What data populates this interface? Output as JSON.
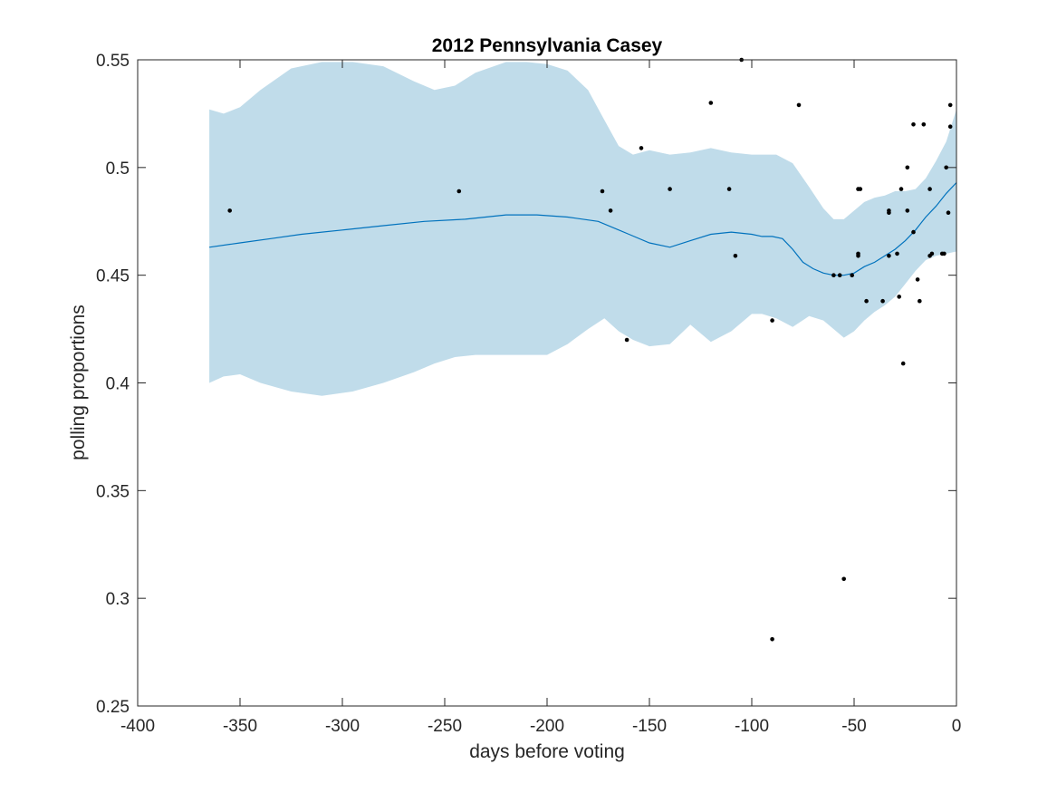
{
  "chart_data": {
    "type": "scatter",
    "title": "2012 Pennsylvania Casey",
    "xlabel": "days before voting",
    "ylabel": "polling proportions",
    "xlim": [
      -400,
      0
    ],
    "ylim": [
      0.25,
      0.55
    ],
    "xticks": [
      -400,
      -350,
      -300,
      -250,
      -200,
      -150,
      -100,
      -50,
      0
    ],
    "yticks": [
      0.25,
      0.3,
      0.35,
      0.4,
      0.45,
      0.5,
      0.55
    ],
    "xtick_labels": [
      "-400",
      "-350",
      "-300",
      "-250",
      "-200",
      "-150",
      "-100",
      "-50",
      "0"
    ],
    "ytick_labels": [
      "0.25",
      "0.3",
      "0.35",
      "0.4",
      "0.45",
      "0.5",
      "0.55"
    ],
    "grid": false,
    "colors": {
      "band": "#c0dcea",
      "trend": "#0072bd",
      "points": "#000000",
      "axes": "#262626"
    },
    "series": [
      {
        "kind": "band",
        "x": [
          -365,
          -358,
          -350,
          -340,
          -325,
          -310,
          -295,
          -280,
          -265,
          -255,
          -245,
          -235,
          -220,
          -210,
          -200,
          -190,
          -180,
          -172,
          -165,
          -158,
          -150,
          -140,
          -130,
          -120,
          -110,
          -100,
          -95,
          -88,
          -80,
          -72,
          -65,
          -60,
          -55,
          -50,
          -45,
          -40,
          -35,
          -30,
          -25,
          -20,
          -15,
          -10,
          -5,
          0
        ],
        "upper": [
          0.527,
          0.525,
          0.528,
          0.536,
          0.546,
          0.549,
          0.549,
          0.547,
          0.54,
          0.536,
          0.538,
          0.544,
          0.549,
          0.549,
          0.548,
          0.545,
          0.536,
          0.522,
          0.51,
          0.506,
          0.508,
          0.506,
          0.507,
          0.509,
          0.507,
          0.506,
          0.506,
          0.506,
          0.502,
          0.491,
          0.481,
          0.476,
          0.476,
          0.48,
          0.484,
          0.486,
          0.487,
          0.489,
          0.489,
          0.49,
          0.495,
          0.503,
          0.512,
          0.527
        ],
        "lower": [
          0.4,
          0.403,
          0.404,
          0.4,
          0.396,
          0.394,
          0.396,
          0.4,
          0.405,
          0.409,
          0.412,
          0.413,
          0.413,
          0.413,
          0.413,
          0.418,
          0.425,
          0.43,
          0.424,
          0.42,
          0.417,
          0.418,
          0.427,
          0.419,
          0.424,
          0.432,
          0.432,
          0.43,
          0.426,
          0.431,
          0.429,
          0.425,
          0.421,
          0.424,
          0.429,
          0.433,
          0.436,
          0.44,
          0.446,
          0.452,
          0.457,
          0.459,
          0.46,
          0.461
        ]
      },
      {
        "kind": "line",
        "x": [
          -365,
          -350,
          -335,
          -320,
          -300,
          -280,
          -260,
          -240,
          -220,
          -205,
          -190,
          -175,
          -160,
          -150,
          -140,
          -130,
          -120,
          -110,
          -100,
          -95,
          -90,
          -85,
          -80,
          -75,
          -70,
          -65,
          -60,
          -55,
          -50,
          -45,
          -40,
          -35,
          -30,
          -25,
          -20,
          -15,
          -10,
          -5,
          0
        ],
        "y": [
          0.463,
          0.465,
          0.467,
          0.469,
          0.471,
          0.473,
          0.475,
          0.476,
          0.478,
          0.478,
          0.477,
          0.475,
          0.469,
          0.465,
          0.463,
          0.466,
          0.469,
          0.47,
          0.469,
          0.468,
          0.468,
          0.467,
          0.462,
          0.456,
          0.453,
          0.451,
          0.45,
          0.45,
          0.451,
          0.454,
          0.456,
          0.459,
          0.462,
          0.466,
          0.471,
          0.477,
          0.482,
          0.488,
          0.493
        ]
      },
      {
        "kind": "points",
        "points": [
          [
            -355,
            0.48
          ],
          [
            -243,
            0.489
          ],
          [
            -173,
            0.489
          ],
          [
            -169,
            0.48
          ],
          [
            -161,
            0.42
          ],
          [
            -154,
            0.509
          ],
          [
            -140,
            0.49
          ],
          [
            -120,
            0.53
          ],
          [
            -111,
            0.49
          ],
          [
            -108,
            0.459
          ],
          [
            -105,
            0.55
          ],
          [
            -90,
            0.429
          ],
          [
            -90,
            0.281
          ],
          [
            -77,
            0.529
          ],
          [
            -60,
            0.45
          ],
          [
            -57,
            0.45
          ],
          [
            -55,
            0.309
          ],
          [
            -51,
            0.45
          ],
          [
            -48,
            0.49
          ],
          [
            -47,
            0.49
          ],
          [
            -48,
            0.46
          ],
          [
            -48,
            0.459
          ],
          [
            -44,
            0.438
          ],
          [
            -36,
            0.438
          ],
          [
            -33,
            0.479
          ],
          [
            -33,
            0.48
          ],
          [
            -33,
            0.459
          ],
          [
            -29,
            0.46
          ],
          [
            -28,
            0.44
          ],
          [
            -27,
            0.49
          ],
          [
            -26,
            0.409
          ],
          [
            -24,
            0.5
          ],
          [
            -24,
            0.48
          ],
          [
            -21,
            0.52
          ],
          [
            -21,
            0.47
          ],
          [
            -19,
            0.448
          ],
          [
            -18,
            0.438
          ],
          [
            -16,
            0.52
          ],
          [
            -13,
            0.49
          ],
          [
            -13,
            0.459
          ],
          [
            -12,
            0.46
          ],
          [
            -7,
            0.46
          ],
          [
            -6,
            0.46
          ],
          [
            -5,
            0.5
          ],
          [
            -4,
            0.479
          ],
          [
            -3,
            0.529
          ],
          [
            -3,
            0.519
          ]
        ]
      }
    ]
  }
}
